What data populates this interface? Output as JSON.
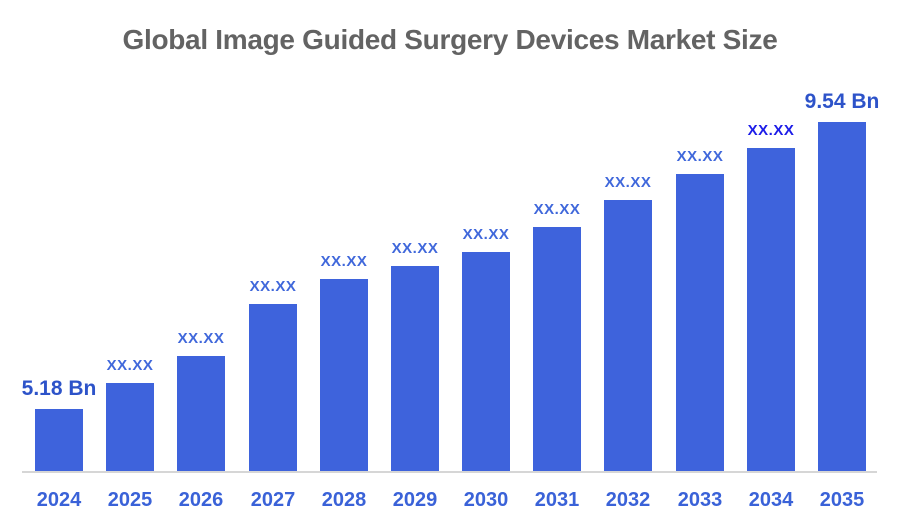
{
  "chart_data": {
    "type": "bar",
    "title": "Global Image Guided Surgery Devices Market Size",
    "categories": [
      "2024",
      "2025",
      "2026",
      "2027",
      "2028",
      "2029",
      "2030",
      "2031",
      "2032",
      "2033",
      "2034",
      "2035"
    ],
    "bar_labels": [
      "5.18 Bn",
      "XX.XX",
      "XX.XX",
      "XX.XX",
      "XX.XX",
      "XX.XX",
      "XX.XX",
      "XX.XX",
      "XX.XX",
      "XX.XX",
      "XX.XX",
      "9.54 Bn"
    ],
    "values_estimated": [
      5.18,
      5.58,
      5.99,
      6.77,
      7.15,
      7.36,
      7.56,
      7.95,
      8.36,
      8.75,
      9.15,
      9.54
    ],
    "first_value_label": "5.18 Bn",
    "last_value_label": "9.54 Bn",
    "unit_suffix_shown": "Bn",
    "ylim": [
      4.21,
      9.9
    ],
    "grid": false,
    "legend": false,
    "y_axis_shown": false,
    "endpoint_label_indices": [
      0,
      11
    ],
    "highlight_label_index": 10,
    "colors": {
      "bar": "#3E63DC",
      "value_label": "#4068DB",
      "endpoint_label": "#2D53C9",
      "highlight_label": "#1C1CE8",
      "year_label": "#3A62D8",
      "axis_line": "#D6D6D6",
      "title": "#636363",
      "background": "#FFFFFF"
    }
  }
}
